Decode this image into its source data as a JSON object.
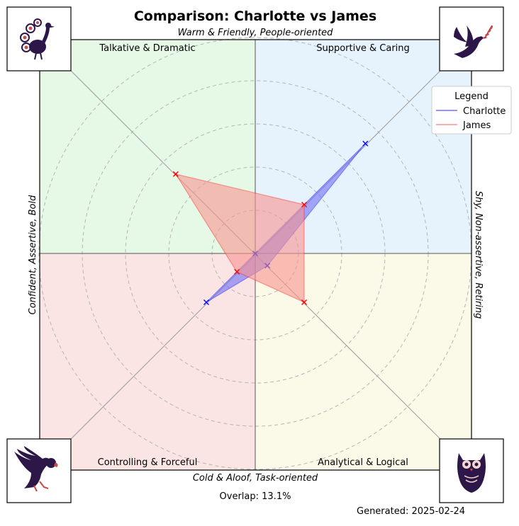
{
  "chart_data": {
    "type": "radar",
    "title": "Comparison: Charlotte vs James",
    "axis_labels": {
      "top": "Warm & Friendly, People-oriented",
      "bottom": "Cold & Aloof, Task-oriented",
      "left": "Confident, Assertive, Bold",
      "right": "Shy, Non-assertive, Retiring"
    },
    "quadrant_labels": {
      "top_left": "Talkative & Dramatic",
      "top_right": "Supportive & Caring",
      "bottom_left": "Controlling & Forceful",
      "bottom_right": "Analytical & Logical"
    },
    "quadrant_colors": {
      "top_left": "#e6f9e6",
      "top_right": "#e6f3fc",
      "bottom_left": "#fae4e4",
      "bottom_right": "#fbfae9"
    },
    "axes": [
      "Talkative & Dramatic",
      "Supportive & Caring",
      "Analytical & Logical",
      "Controlling & Forceful"
    ],
    "rlim": [
      0,
      1
    ],
    "grid_rings": 5,
    "grid": true,
    "series": [
      {
        "name": "Charlotte",
        "color": "#0000ff",
        "fill": "#6f70f5",
        "values": {
          "Talkative & Dramatic": 0.0,
          "Supportive & Caring": 0.72,
          "Analytical & Logical": 0.08,
          "Controlling & Forceful": 0.32
        }
      },
      {
        "name": "James",
        "color": "#ff0000",
        "fill": "#f8938f",
        "values": {
          "Talkative & Dramatic": 0.52,
          "Supportive & Caring": 0.32,
          "Analytical & Logical": 0.32,
          "Controlling & Forceful": 0.12
        }
      }
    ],
    "legend": {
      "title": "Legend",
      "placement": "upper-right"
    }
  },
  "corner_icons": {
    "top_left": "peacock-icon",
    "top_right": "dove-icon",
    "bottom_left": "eagle-icon",
    "bottom_right": "owl-icon"
  },
  "footer": {
    "overlap": "Overlap: 13.1%",
    "generated": "Generated: 2025-02-24"
  }
}
